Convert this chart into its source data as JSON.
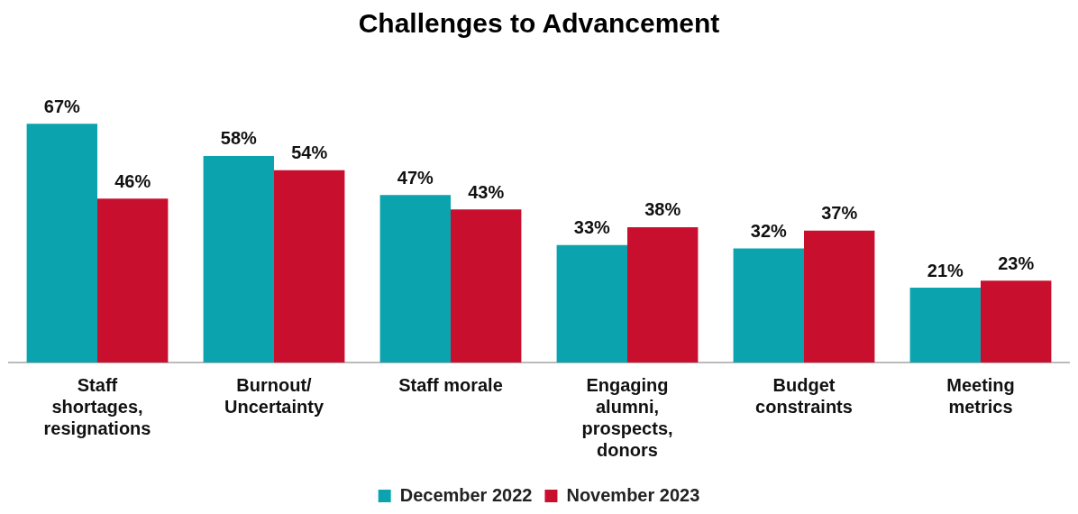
{
  "chart_data": {
    "type": "bar",
    "title": "Challenges to Advancement",
    "categories": [
      "Staff shortages, resignations",
      "Burnout/Uncertainty",
      "Staff morale",
      "Engaging alumni, prospects, donors",
      "Budget constraints",
      "Meeting metrics"
    ],
    "series": [
      {
        "name": "December 2022",
        "color": "#0ba4ae",
        "values": [
          67,
          58,
          47,
          33,
          32,
          21
        ],
        "value_labels": [
          "67%",
          "58%",
          "47%",
          "33%",
          "32%",
          "21%"
        ]
      },
      {
        "name": "November 2023",
        "color": "#c8102e",
        "values": [
          46,
          54,
          43,
          38,
          37,
          23
        ],
        "value_labels": [
          "46%",
          "54%",
          "43%",
          "38%",
          "37%",
          "23%"
        ]
      }
    ],
    "legend": "bottom",
    "grid": false
  }
}
